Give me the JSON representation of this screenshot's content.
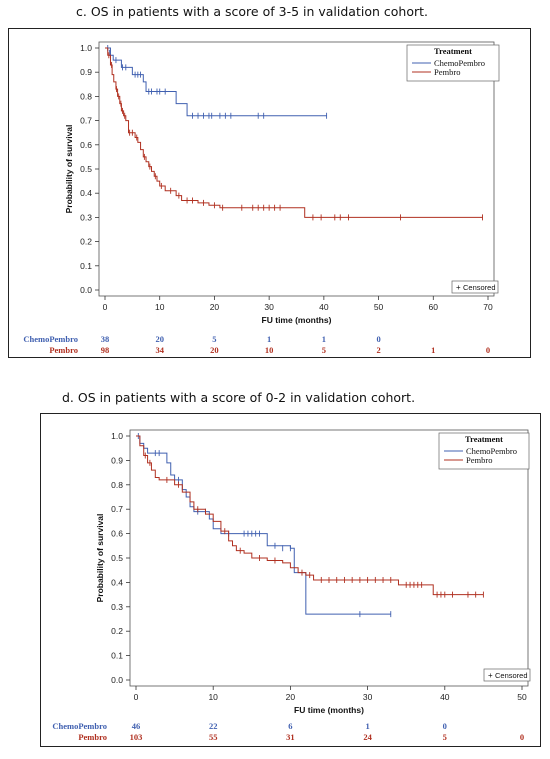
{
  "panels": [
    {
      "caption": "c. OS in patients with a score of 3-5 in validation cohort.",
      "ylabel": "Probability of survival",
      "xlabel": "FU time (months)",
      "legend_title": "Treatment",
      "censored_label": "Censored",
      "y_ticks": [
        "0.0",
        "0.1",
        "0.2",
        "0.3",
        "0.4",
        "0.5",
        "0.6",
        "0.7",
        "0.8",
        "0.9",
        "1.0"
      ],
      "x_ticks": [
        "0",
        "10",
        "20",
        "30",
        "40",
        "50",
        "60",
        "70"
      ],
      "risk_table": [
        {
          "label": "ChemoPembro",
          "values": [
            "38",
            "20",
            "5",
            "1",
            "1",
            "0"
          ]
        },
        {
          "label": "Pembro",
          "values": [
            "98",
            "34",
            "20",
            "10",
            "5",
            "2",
            "1",
            "0"
          ]
        }
      ]
    },
    {
      "caption": "d. OS in patients with a score of 0-2 in validation cohort.",
      "ylabel": "Probability of survival",
      "xlabel": "FU time (months)",
      "legend_title": "Treatment",
      "censored_label": "Censored",
      "y_ticks": [
        "0.0",
        "0.1",
        "0.2",
        "0.3",
        "0.4",
        "0.5",
        "0.6",
        "0.7",
        "0.8",
        "0.9",
        "1.0"
      ],
      "x_ticks": [
        "0",
        "10",
        "20",
        "30",
        "40",
        "50"
      ],
      "risk_table": [
        {
          "label": "ChemoPembro",
          "values": [
            "46",
            "22",
            "6",
            "1",
            "0"
          ]
        },
        {
          "label": "Pembro",
          "values": [
            "103",
            "55",
            "31",
            "24",
            "5",
            "0"
          ]
        }
      ]
    }
  ],
  "chart_data": [
    {
      "type": "line",
      "title": "c. OS in patients with a score of 3-5 in validation cohort.",
      "xlabel": "FU time (months)",
      "ylabel": "Probability of survival",
      "xlim": [
        0,
        70
      ],
      "ylim": [
        0,
        1
      ],
      "legend_position": "top-right",
      "series": [
        {
          "name": "ChemoPembro",
          "color": "#4060b0",
          "steps": [
            [
              0,
              1.0
            ],
            [
              1,
              0.97
            ],
            [
              1.5,
              0.95
            ],
            [
              3,
              0.92
            ],
            [
              5,
              0.89
            ],
            [
              7,
              0.86
            ],
            [
              7.5,
              0.82
            ],
            [
              13,
              0.77
            ],
            [
              15,
              0.72
            ],
            [
              40.5,
              0.72
            ]
          ],
          "censored": [
            [
              0.5,
              1.0
            ],
            [
              0.8,
              0.98
            ],
            [
              2,
              0.95
            ],
            [
              3.2,
              0.92
            ],
            [
              3.8,
              0.92
            ],
            [
              5.5,
              0.89
            ],
            [
              6,
              0.89
            ],
            [
              6.5,
              0.89
            ],
            [
              8,
              0.82
            ],
            [
              8.5,
              0.82
            ],
            [
              9.5,
              0.82
            ],
            [
              10,
              0.82
            ],
            [
              11,
              0.82
            ],
            [
              16,
              0.72
            ],
            [
              17,
              0.72
            ],
            [
              18,
              0.72
            ],
            [
              19,
              0.72
            ],
            [
              19.5,
              0.72
            ],
            [
              21,
              0.72
            ],
            [
              22,
              0.72
            ],
            [
              23,
              0.72
            ],
            [
              28,
              0.72
            ],
            [
              29,
              0.72
            ],
            [
              40.5,
              0.72
            ]
          ]
        },
        {
          "name": "Pembro",
          "color": "#b03020",
          "steps": [
            [
              0,
              1.0
            ],
            [
              0.5,
              0.97
            ],
            [
              1,
              0.93
            ],
            [
              1.3,
              0.89
            ],
            [
              1.6,
              0.86
            ],
            [
              2,
              0.83
            ],
            [
              2.3,
              0.8
            ],
            [
              2.7,
              0.77
            ],
            [
              3,
              0.74
            ],
            [
              3.4,
              0.72
            ],
            [
              3.8,
              0.7
            ],
            [
              4.3,
              0.65
            ],
            [
              5.5,
              0.63
            ],
            [
              6,
              0.61
            ],
            [
              6.5,
              0.58
            ],
            [
              7,
              0.55
            ],
            [
              7.5,
              0.53
            ],
            [
              8,
              0.51
            ],
            [
              8.5,
              0.49
            ],
            [
              9,
              0.47
            ],
            [
              9.5,
              0.45
            ],
            [
              10,
              0.43
            ],
            [
              11,
              0.41
            ],
            [
              13,
              0.39
            ],
            [
              14,
              0.37
            ],
            [
              17,
              0.36
            ],
            [
              19,
              0.35
            ],
            [
              21,
              0.34
            ],
            [
              36.5,
              0.3
            ],
            [
              69,
              0.3
            ]
          ],
          "censored": [
            [
              0.7,
              0.97
            ],
            [
              1.2,
              0.93
            ],
            [
              2.1,
              0.83
            ],
            [
              2.5,
              0.8
            ],
            [
              2.9,
              0.77
            ],
            [
              3.2,
              0.74
            ],
            [
              3.6,
              0.72
            ],
            [
              4.5,
              0.65
            ],
            [
              5,
              0.65
            ],
            [
              5.8,
              0.63
            ],
            [
              7.2,
              0.55
            ],
            [
              8.2,
              0.51
            ],
            [
              9.2,
              0.47
            ],
            [
              10.3,
              0.43
            ],
            [
              12,
              0.41
            ],
            [
              13.5,
              0.39
            ],
            [
              15,
              0.37
            ],
            [
              16,
              0.37
            ],
            [
              18,
              0.36
            ],
            [
              20,
              0.35
            ],
            [
              21.5,
              0.34
            ],
            [
              25,
              0.34
            ],
            [
              27,
              0.34
            ],
            [
              28,
              0.34
            ],
            [
              29,
              0.34
            ],
            [
              30,
              0.34
            ],
            [
              31,
              0.34
            ],
            [
              32,
              0.34
            ],
            [
              38,
              0.3
            ],
            [
              39.5,
              0.3
            ],
            [
              42,
              0.3
            ],
            [
              43,
              0.3
            ],
            [
              44.5,
              0.3
            ],
            [
              54,
              0.3
            ],
            [
              69,
              0.3
            ]
          ]
        }
      ]
    },
    {
      "type": "line",
      "title": "d. OS in patients with a score of 0-2 in validation cohort.",
      "xlabel": "FU time (months)",
      "ylabel": "Probability of survival",
      "xlim": [
        0,
        50
      ],
      "ylim": [
        0,
        1
      ],
      "legend_position": "top-right",
      "series": [
        {
          "name": "ChemoPembro",
          "color": "#4060b0",
          "steps": [
            [
              0,
              1.0
            ],
            [
              0.5,
              0.97
            ],
            [
              1,
              0.95
            ],
            [
              1.5,
              0.93
            ],
            [
              4,
              0.89
            ],
            [
              4.5,
              0.84
            ],
            [
              5,
              0.82
            ],
            [
              6,
              0.78
            ],
            [
              6.5,
              0.75
            ],
            [
              7,
              0.71
            ],
            [
              7.5,
              0.69
            ],
            [
              9.5,
              0.66
            ],
            [
              10,
              0.62
            ],
            [
              11,
              0.6
            ],
            [
              17,
              0.55
            ],
            [
              20,
              0.54
            ],
            [
              20.5,
              0.44
            ],
            [
              22,
              0.27
            ],
            [
              33,
              0.27
            ]
          ],
          "censored": [
            [
              0.3,
              1.0
            ],
            [
              2.5,
              0.93
            ],
            [
              3,
              0.93
            ],
            [
              5.5,
              0.82
            ],
            [
              8,
              0.69
            ],
            [
              9,
              0.69
            ],
            [
              12,
              0.6
            ],
            [
              14,
              0.6
            ],
            [
              14.5,
              0.6
            ],
            [
              15,
              0.6
            ],
            [
              15.5,
              0.6
            ],
            [
              16,
              0.6
            ],
            [
              18,
              0.55
            ],
            [
              19,
              0.54
            ],
            [
              20,
              0.54
            ],
            [
              29,
              0.27
            ],
            [
              33,
              0.27
            ]
          ]
        },
        {
          "name": "Pembro",
          "color": "#b03020",
          "steps": [
            [
              0,
              1.0
            ],
            [
              0.5,
              0.96
            ],
            [
              1,
              0.92
            ],
            [
              1.5,
              0.89
            ],
            [
              2,
              0.86
            ],
            [
              2.5,
              0.83
            ],
            [
              3,
              0.82
            ],
            [
              5,
              0.8
            ],
            [
              6,
              0.77
            ],
            [
              7,
              0.73
            ],
            [
              7.5,
              0.7
            ],
            [
              9,
              0.68
            ],
            [
              10,
              0.65
            ],
            [
              11,
              0.61
            ],
            [
              12,
              0.57
            ],
            [
              12.5,
              0.55
            ],
            [
              13,
              0.53
            ],
            [
              14,
              0.52
            ],
            [
              15,
              0.5
            ],
            [
              17,
              0.49
            ],
            [
              19,
              0.48
            ],
            [
              20,
              0.46
            ],
            [
              21,
              0.44
            ],
            [
              22,
              0.43
            ],
            [
              23,
              0.41
            ],
            [
              34,
              0.39
            ],
            [
              38,
              0.39
            ],
            [
              38.5,
              0.35
            ],
            [
              45,
              0.35
            ]
          ],
          "censored": [
            [
              1.2,
              0.92
            ],
            [
              1.8,
              0.89
            ],
            [
              4,
              0.82
            ],
            [
              5.5,
              0.8
            ],
            [
              8,
              0.7
            ],
            [
              11.5,
              0.61
            ],
            [
              13.5,
              0.53
            ],
            [
              16,
              0.5
            ],
            [
              18,
              0.49
            ],
            [
              21.5,
              0.44
            ],
            [
              22.5,
              0.43
            ],
            [
              24,
              0.41
            ],
            [
              25,
              0.41
            ],
            [
              26,
              0.41
            ],
            [
              27,
              0.41
            ],
            [
              28,
              0.41
            ],
            [
              29,
              0.41
            ],
            [
              30,
              0.41
            ],
            [
              31,
              0.41
            ],
            [
              32,
              0.41
            ],
            [
              33,
              0.41
            ],
            [
              35,
              0.39
            ],
            [
              35.5,
              0.39
            ],
            [
              36,
              0.39
            ],
            [
              36.5,
              0.39
            ],
            [
              37,
              0.39
            ],
            [
              39,
              0.35
            ],
            [
              39.5,
              0.35
            ],
            [
              40,
              0.35
            ],
            [
              41,
              0.35
            ],
            [
              43,
              0.35
            ],
            [
              44,
              0.35
            ],
            [
              45,
              0.35
            ]
          ]
        }
      ]
    }
  ]
}
